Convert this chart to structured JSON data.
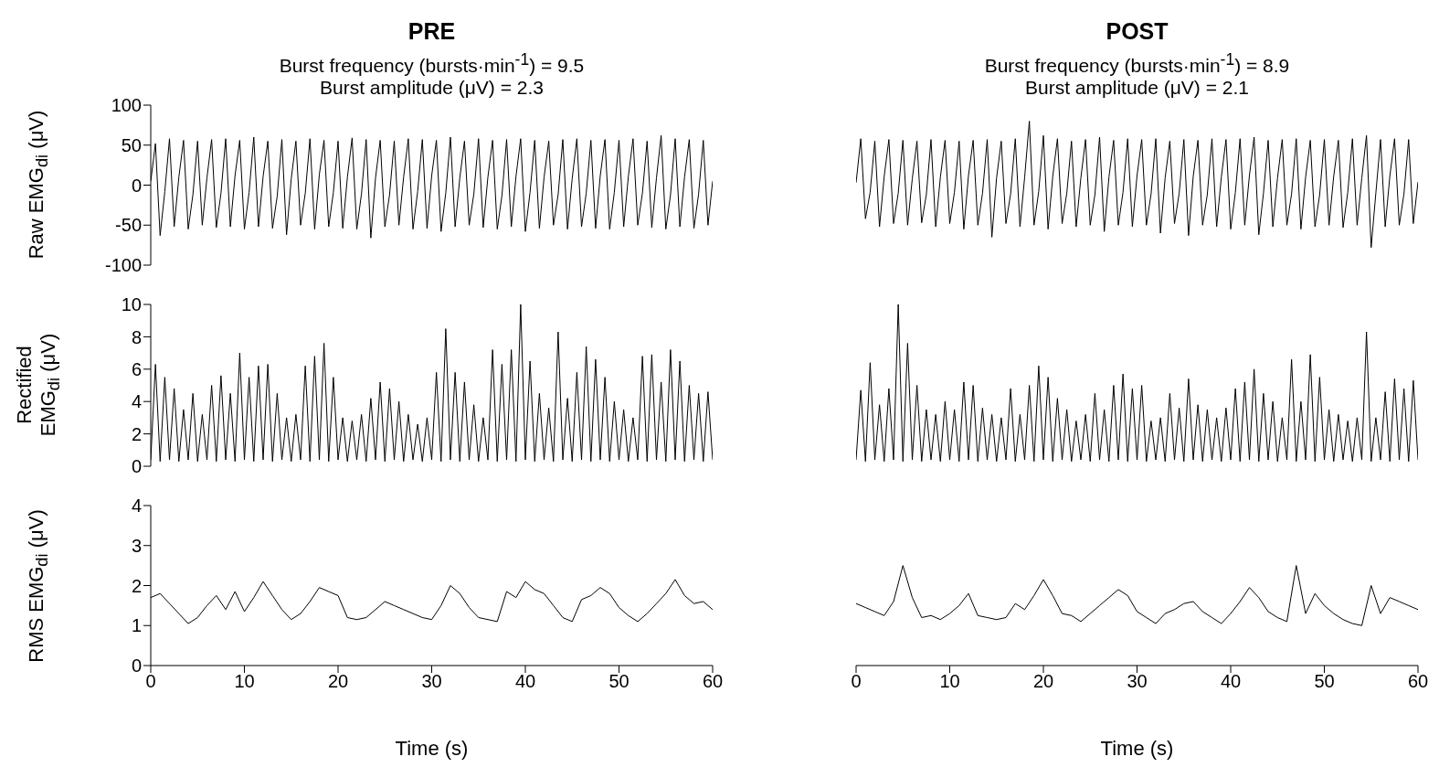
{
  "chart_data": [
    {
      "type": "line",
      "title": "PRE",
      "subtitle": "Burst frequency (bursts·min$^{-1}$) = 9.5\nBurst amplitude (μV) = 2.3",
      "ylabel": "Raw EMG$_{di}$ (μV)",
      "color": "#000000",
      "xlim": [
        0,
        60
      ],
      "ylim": [
        -100,
        100
      ],
      "yticks": [
        -100,
        -50,
        0,
        50,
        100
      ],
      "tick_labels": "y",
      "x": [
        0,
        0.5,
        1,
        1.5,
        2,
        2.5,
        3,
        3.5,
        4,
        4.5,
        5,
        5.5,
        6,
        6.5,
        7,
        7.5,
        8,
        8.5,
        9,
        9.5,
        10,
        10.5,
        11,
        11.5,
        12,
        12.5,
        13,
        13.5,
        14,
        14.5,
        15,
        15.5,
        16,
        16.5,
        17,
        17.5,
        18,
        18.5,
        19,
        19.5,
        20,
        20.5,
        21,
        21.5,
        22,
        22.5,
        23,
        23.5,
        24,
        24.5,
        25,
        25.5,
        26,
        26.5,
        27,
        27.5,
        28,
        28.5,
        29,
        29.5,
        30,
        30.5,
        31,
        31.5,
        32,
        32.5,
        33,
        33.5,
        34,
        34.5,
        35,
        35.5,
        36,
        36.5,
        37,
        37.5,
        38,
        38.5,
        39,
        39.5,
        40,
        40.5,
        41,
        41.5,
        42,
        42.5,
        43,
        43.5,
        44,
        44.5,
        45,
        45.5,
        46,
        46.5,
        47,
        47.5,
        48,
        48.5,
        49,
        49.5,
        50,
        50.5,
        51,
        51.5,
        52,
        52.5,
        53,
        53.5,
        54,
        54.5,
        55,
        55.5,
        56,
        56.5,
        57,
        57.5,
        58,
        58.5,
        59,
        59.5,
        60
      ],
      "values": [
        5,
        52,
        -63,
        -8,
        58,
        -52,
        10,
        56,
        -55,
        -12,
        55,
        -50,
        9,
        57,
        -53,
        -10,
        58,
        -52,
        12,
        56,
        -55,
        -9,
        60,
        -52,
        11,
        55,
        -54,
        -14,
        57,
        -62,
        8,
        55,
        -50,
        -10,
        58,
        -55,
        13,
        56,
        -52,
        -9,
        55,
        -54,
        10,
        59,
        -55,
        -11,
        57,
        -66,
        9,
        56,
        -52,
        -12,
        55,
        -50,
        10,
        58,
        -55,
        -8,
        57,
        -54,
        12,
        56,
        -58,
        -10,
        60,
        -52,
        9,
        55,
        -50,
        -11,
        58,
        -53,
        10,
        56,
        -55,
        -13,
        57,
        -52,
        11,
        58,
        -58,
        -9,
        56,
        -54,
        10,
        55,
        -50,
        -12,
        57,
        -55,
        8,
        58,
        -52,
        -10,
        56,
        -54,
        12,
        57,
        -55,
        -9,
        56,
        -52,
        11,
        58,
        -50,
        -10,
        55,
        -53,
        9,
        62,
        -55,
        -12,
        58,
        -52,
        10,
        57,
        -54,
        -11,
        56,
        -50,
        5
      ]
    },
    {
      "type": "line",
      "title": "POST",
      "subtitle": "Burst frequency (bursts·min$^{-1}$) = 8.9\nBurst amplitude (μV) = 2.1",
      "color": "#000000",
      "xlim": [
        0,
        60
      ],
      "ylim": [
        -100,
        100
      ],
      "tick_labels": false,
      "x": [
        0,
        0.5,
        1,
        1.5,
        2,
        2.5,
        3,
        3.5,
        4,
        4.5,
        5,
        5.5,
        6,
        6.5,
        7,
        7.5,
        8,
        8.5,
        9,
        9.5,
        10,
        10.5,
        11,
        11.5,
        12,
        12.5,
        13,
        13.5,
        14,
        14.5,
        15,
        15.5,
        16,
        16.5,
        17,
        17.5,
        18,
        18.5,
        19,
        19.5,
        20,
        20.5,
        21,
        21.5,
        22,
        22.5,
        23,
        23.5,
        24,
        24.5,
        25,
        25.5,
        26,
        26.5,
        27,
        27.5,
        28,
        28.5,
        29,
        29.5,
        30,
        30.5,
        31,
        31.5,
        32,
        32.5,
        33,
        33.5,
        34,
        34.5,
        35,
        35.5,
        36,
        36.5,
        37,
        37.5,
        38,
        38.5,
        39,
        39.5,
        40,
        40.5,
        41,
        41.5,
        42,
        42.5,
        43,
        43.5,
        44,
        44.5,
        45,
        45.5,
        46,
        46.5,
        47,
        47.5,
        48,
        48.5,
        49,
        49.5,
        50,
        50.5,
        51,
        51.5,
        52,
        52.5,
        53,
        53.5,
        54,
        54.5,
        55,
        55.5,
        56,
        56.5,
        57,
        57.5,
        58,
        58.5,
        59,
        59.5,
        60
      ],
      "values": [
        3,
        58,
        -42,
        -9,
        55,
        -52,
        11,
        57,
        -48,
        -10,
        56,
        -50,
        8,
        55,
        -47,
        -12,
        57,
        -52,
        10,
        56,
        -48,
        -9,
        55,
        -55,
        12,
        56,
        -50,
        -10,
        57,
        -65,
        9,
        55,
        -48,
        -11,
        58,
        -52,
        10,
        80,
        -50,
        -8,
        62,
        -55,
        11,
        58,
        -48,
        -10,
        55,
        -52,
        9,
        57,
        -50,
        -12,
        60,
        -58,
        10,
        56,
        -50,
        -9,
        58,
        -52,
        12,
        57,
        -50,
        -11,
        58,
        -60,
        9,
        55,
        -48,
        -10,
        57,
        -63,
        11,
        56,
        -50,
        -12,
        58,
        -52,
        10,
        57,
        -55,
        -9,
        58,
        -50,
        12,
        60,
        -62,
        -10,
        56,
        -52,
        9,
        57,
        -50,
        -11,
        58,
        -55,
        10,
        56,
        -52,
        -12,
        57,
        -50,
        11,
        56,
        -53,
        -9,
        58,
        -50,
        9,
        62,
        -78,
        -10,
        57,
        -52,
        12,
        58,
        -50,
        -11,
        57,
        -48,
        4
      ]
    },
    {
      "type": "line",
      "ylabel": "Rectified\nEMG$_{di}$ (μV)",
      "color": "#000000",
      "xlim": [
        0,
        60
      ],
      "ylim": [
        0,
        10
      ],
      "yticks": [
        0,
        2,
        4,
        6,
        8,
        10
      ],
      "tick_labels": "y",
      "x": [
        0,
        0.5,
        1,
        1.5,
        2,
        2.5,
        3,
        3.5,
        4,
        4.5,
        5,
        5.5,
        6,
        6.5,
        7,
        7.5,
        8,
        8.5,
        9,
        9.5,
        10,
        10.5,
        11,
        11.5,
        12,
        12.5,
        13,
        13.5,
        14,
        14.5,
        15,
        15.5,
        16,
        16.5,
        17,
        17.5,
        18,
        18.5,
        19,
        19.5,
        20,
        20.5,
        21,
        21.5,
        22,
        22.5,
        23,
        23.5,
        24,
        24.5,
        25,
        25.5,
        26,
        26.5,
        27,
        27.5,
        28,
        28.5,
        29,
        29.5,
        30,
        30.5,
        31,
        31.5,
        32,
        32.5,
        33,
        33.5,
        34,
        34.5,
        35,
        35.5,
        36,
        36.5,
        37,
        37.5,
        38,
        38.5,
        39,
        39.5,
        40,
        40.5,
        41,
        41.5,
        42,
        42.5,
        43,
        43.5,
        44,
        44.5,
        45,
        45.5,
        46,
        46.5,
        47,
        47.5,
        48,
        48.5,
        49,
        49.5,
        50,
        50.5,
        51,
        51.5,
        52,
        52.5,
        53,
        53.5,
        54,
        54.5,
        55,
        55.5,
        56,
        56.5,
        57,
        57.5,
        58,
        58.5,
        59,
        59.5,
        60
      ],
      "values": [
        0.4,
        6.3,
        0.3,
        5.5,
        0.4,
        4.8,
        0.3,
        3.5,
        0.4,
        4.5,
        0.3,
        3.2,
        0.4,
        5.0,
        0.3,
        5.6,
        0.4,
        4.5,
        0.3,
        7.0,
        0.4,
        5.5,
        0.3,
        6.2,
        0.4,
        6.3,
        0.3,
        4.5,
        0.4,
        3.0,
        0.3,
        3.2,
        0.4,
        6.2,
        0.3,
        6.8,
        0.4,
        7.6,
        0.3,
        5.5,
        0.4,
        3.0,
        0.3,
        2.8,
        0.4,
        3.2,
        0.3,
        4.2,
        0.4,
        5.2,
        0.3,
        4.8,
        0.4,
        4.0,
        0.3,
        3.2,
        0.4,
        2.6,
        0.3,
        3.0,
        0.4,
        5.8,
        0.3,
        8.5,
        0.4,
        5.8,
        0.3,
        5.2,
        0.4,
        3.8,
        0.3,
        3.0,
        0.4,
        7.2,
        0.3,
        6.3,
        0.4,
        7.2,
        0.3,
        10.0,
        0.4,
        6.5,
        0.3,
        4.5,
        0.4,
        3.6,
        0.3,
        8.3,
        0.4,
        4.2,
        0.3,
        5.8,
        0.4,
        7.4,
        0.3,
        6.6,
        0.4,
        5.5,
        0.3,
        4.0,
        0.4,
        3.5,
        0.3,
        3.0,
        0.4,
        6.8,
        0.3,
        6.9,
        0.4,
        5.2,
        0.3,
        7.2,
        0.4,
        6.5,
        0.3,
        5.0,
        0.4,
        4.5,
        0.3,
        4.6,
        0.4
      ]
    },
    {
      "type": "line",
      "color": "#000000",
      "xlim": [
        0,
        60
      ],
      "ylim": [
        0,
        10
      ],
      "tick_labels": false,
      "x": [
        0,
        0.5,
        1,
        1.5,
        2,
        2.5,
        3,
        3.5,
        4,
        4.5,
        5,
        5.5,
        6,
        6.5,
        7,
        7.5,
        8,
        8.5,
        9,
        9.5,
        10,
        10.5,
        11,
        11.5,
        12,
        12.5,
        13,
        13.5,
        14,
        14.5,
        15,
        15.5,
        16,
        16.5,
        17,
        17.5,
        18,
        18.5,
        19,
        19.5,
        20,
        20.5,
        21,
        21.5,
        22,
        22.5,
        23,
        23.5,
        24,
        24.5,
        25,
        25.5,
        26,
        26.5,
        27,
        27.5,
        28,
        28.5,
        29,
        29.5,
        30,
        30.5,
        31,
        31.5,
        32,
        32.5,
        33,
        33.5,
        34,
        34.5,
        35,
        35.5,
        36,
        36.5,
        37,
        37.5,
        38,
        38.5,
        39,
        39.5,
        40,
        40.5,
        41,
        41.5,
        42,
        42.5,
        43,
        43.5,
        44,
        44.5,
        45,
        45.5,
        46,
        46.5,
        47,
        47.5,
        48,
        48.5,
        49,
        49.5,
        50,
        50.5,
        51,
        51.5,
        52,
        52.5,
        53,
        53.5,
        54,
        54.5,
        55,
        55.5,
        56,
        56.5,
        57,
        57.5,
        58,
        58.5,
        59,
        59.5,
        60
      ],
      "values": [
        0.4,
        4.7,
        0.3,
        6.4,
        0.4,
        3.8,
        0.3,
        4.8,
        0.4,
        10.0,
        0.3,
        7.6,
        0.4,
        5.0,
        0.3,
        3.5,
        0.4,
        3.2,
        0.3,
        4.0,
        0.4,
        3.5,
        0.3,
        5.2,
        0.4,
        5.0,
        0.3,
        3.6,
        0.4,
        3.2,
        0.3,
        3.0,
        0.4,
        4.8,
        0.3,
        3.2,
        0.4,
        5.0,
        0.3,
        6.2,
        0.4,
        5.5,
        0.3,
        4.2,
        0.4,
        3.5,
        0.3,
        2.8,
        0.4,
        3.2,
        0.3,
        4.5,
        0.4,
        3.5,
        0.3,
        5.0,
        0.4,
        5.7,
        0.3,
        4.8,
        0.4,
        5.0,
        0.3,
        2.8,
        0.4,
        3.0,
        0.3,
        4.5,
        0.4,
        3.6,
        0.3,
        5.4,
        0.4,
        3.8,
        0.3,
        3.5,
        0.4,
        3.0,
        0.3,
        3.6,
        0.4,
        4.8,
        0.3,
        5.2,
        0.4,
        6.0,
        0.3,
        4.5,
        0.4,
        4.0,
        0.3,
        3.0,
        0.4,
        6.6,
        0.3,
        4.0,
        0.4,
        6.9,
        0.3,
        5.5,
        0.4,
        3.5,
        0.3,
        3.2,
        0.4,
        2.8,
        0.3,
        3.0,
        0.4,
        8.3,
        0.3,
        3.0,
        0.4,
        4.6,
        0.3,
        5.4,
        0.4,
        4.8,
        0.3,
        5.3,
        0.4
      ]
    },
    {
      "type": "line",
      "ylabel": "RMS EMG$_{di}$ (μV)",
      "xlabel": "Time (s)",
      "color": "#000000",
      "xlim": [
        0,
        60
      ],
      "xticks": [
        0,
        10,
        20,
        30,
        40,
        50,
        60
      ],
      "ylim": [
        0,
        4
      ],
      "yticks": [
        0,
        1,
        2,
        3,
        4
      ],
      "x": [
        0,
        1,
        2,
        3,
        4,
        5,
        6,
        7,
        8,
        9,
        10,
        11,
        12,
        13,
        14,
        15,
        16,
        17,
        18,
        19,
        20,
        21,
        22,
        23,
        24,
        25,
        26,
        27,
        28,
        29,
        30,
        31,
        32,
        33,
        34,
        35,
        36,
        37,
        38,
        39,
        40,
        41,
        42,
        43,
        44,
        45,
        46,
        47,
        48,
        49,
        50,
        51,
        52,
        53,
        54,
        55,
        56,
        57,
        58,
        59,
        60
      ],
      "values": [
        1.7,
        1.8,
        1.55,
        1.3,
        1.05,
        1.2,
        1.5,
        1.75,
        1.4,
        1.85,
        1.35,
        1.7,
        2.1,
        1.75,
        1.4,
        1.15,
        1.3,
        1.6,
        1.95,
        1.85,
        1.75,
        1.2,
        1.15,
        1.2,
        1.4,
        1.6,
        1.5,
        1.4,
        1.3,
        1.2,
        1.15,
        1.5,
        2.0,
        1.8,
        1.45,
        1.2,
        1.15,
        1.1,
        1.85,
        1.7,
        2.1,
        1.9,
        1.8,
        1.5,
        1.2,
        1.1,
        1.65,
        1.75,
        1.95,
        1.8,
        1.45,
        1.25,
        1.1,
        1.3,
        1.55,
        1.8,
        2.15,
        1.75,
        1.55,
        1.6,
        1.4
      ]
    },
    {
      "type": "line",
      "xlabel": "Time (s)",
      "color": "#000000",
      "xlim": [
        0,
        60
      ],
      "xticks": [
        0,
        10,
        20,
        30,
        40,
        50,
        60
      ],
      "ylim": [
        0,
        4
      ],
      "tick_labels": "x",
      "x": [
        0,
        1,
        2,
        3,
        4,
        5,
        6,
        7,
        8,
        9,
        10,
        11,
        12,
        13,
        14,
        15,
        16,
        17,
        18,
        19,
        20,
        21,
        22,
        23,
        24,
        25,
        26,
        27,
        28,
        29,
        30,
        31,
        32,
        33,
        34,
        35,
        36,
        37,
        38,
        39,
        40,
        41,
        42,
        43,
        44,
        45,
        46,
        47,
        48,
        49,
        50,
        51,
        52,
        53,
        54,
        55,
        56,
        57,
        58,
        59,
        60
      ],
      "values": [
        1.55,
        1.45,
        1.35,
        1.25,
        1.6,
        2.5,
        1.7,
        1.2,
        1.25,
        1.15,
        1.3,
        1.5,
        1.8,
        1.25,
        1.2,
        1.15,
        1.2,
        1.55,
        1.4,
        1.75,
        2.15,
        1.75,
        1.3,
        1.25,
        1.1,
        1.3,
        1.5,
        1.7,
        1.9,
        1.75,
        1.35,
        1.2,
        1.05,
        1.3,
        1.4,
        1.55,
        1.6,
        1.35,
        1.2,
        1.05,
        1.3,
        1.6,
        1.95,
        1.7,
        1.35,
        1.2,
        1.1,
        2.5,
        1.3,
        1.8,
        1.5,
        1.3,
        1.15,
        1.05,
        1.0,
        2.0,
        1.3,
        1.7,
        1.6,
        1.5,
        1.4
      ]
    }
  ]
}
